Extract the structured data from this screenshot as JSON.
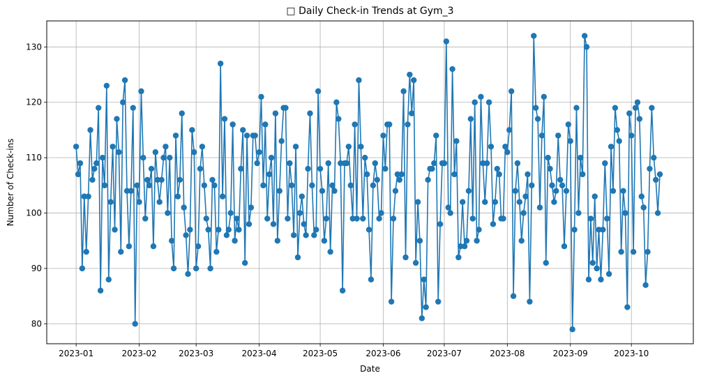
{
  "chart_data": {
    "type": "line",
    "title": "□ Daily Check-in Trends at Gym_3",
    "xlabel": "Date",
    "ylabel": "Number of Check-ins",
    "grid": true,
    "marker": "circle",
    "line_color": "#1f77b4",
    "x_start": "2023-01-01",
    "x_end": "2023-10-17",
    "x_ticks": [
      "2023-01",
      "2023-02",
      "2023-03",
      "2023-04",
      "2023-05",
      "2023-06",
      "2023-07",
      "2023-08",
      "2023-09",
      "2023-10"
    ],
    "y_ticks": [
      80,
      90,
      100,
      110,
      120,
      130
    ],
    "ylim": [
      76.4,
      134.7
    ],
    "series": [
      {
        "values": [
          112,
          107,
          109,
          90,
          103,
          93,
          103,
          115,
          106,
          108,
          109,
          119,
          86,
          110,
          105,
          123,
          88,
          102,
          112,
          97,
          117,
          111,
          93,
          120,
          124,
          104,
          94,
          104,
          119,
          80,
          105,
          102,
          122,
          110,
          99,
          106,
          105,
          108,
          94,
          111,
          106,
          102,
          106,
          110,
          112,
          100,
          110,
          95,
          90,
          114,
          103,
          106,
          118,
          101,
          96,
          89,
          97,
          115,
          111,
          90,
          94,
          108,
          112,
          105,
          99,
          97,
          90,
          106,
          105,
          93,
          97,
          127,
          103,
          117,
          96,
          97,
          100,
          116,
          95,
          99,
          97,
          108,
          115,
          91,
          114,
          98,
          101,
          114,
          114,
          109,
          111,
          121,
          105,
          116,
          99,
          107,
          110,
          98,
          118,
          95,
          104,
          113,
          119,
          119,
          99,
          109,
          105,
          96,
          112,
          92,
          100,
          103,
          98,
          96,
          108,
          118,
          105,
          96,
          97,
          122,
          108,
          104,
          95,
          99,
          109,
          93,
          105,
          104,
          120,
          117,
          109,
          86,
          109,
          109,
          112,
          105,
          99,
          116,
          99,
          124,
          112,
          99,
          110,
          107,
          97,
          88,
          105,
          109,
          106,
          99,
          100,
          114,
          108,
          116,
          116,
          84,
          99,
          104,
          107,
          106,
          107,
          122,
          92,
          116,
          125,
          118,
          124,
          91,
          102,
          95,
          81,
          88,
          83,
          106,
          108,
          108,
          109,
          114,
          84,
          98,
          109,
          109,
          131,
          101,
          100,
          126,
          107,
          113,
          92,
          94,
          102,
          94,
          95,
          104,
          117,
          99,
          120,
          95,
          97,
          121,
          109,
          102,
          109,
          120,
          112,
          98,
          102,
          108,
          107,
          99,
          99,
          112,
          111,
          115,
          122,
          85,
          104,
          109,
          102,
          95,
          100,
          103,
          107,
          84,
          105,
          132,
          119,
          117,
          101,
          114,
          121,
          91,
          110,
          108,
          105,
          102,
          104,
          114,
          106,
          105,
          94,
          104,
          116,
          113,
          79,
          97,
          119,
          100,
          110,
          107,
          132,
          130,
          88,
          99,
          91,
          103,
          90,
          97,
          88,
          97,
          109,
          99,
          89,
          112,
          104,
          119,
          115,
          113,
          93,
          104,
          100,
          83,
          118,
          114,
          93,
          119,
          120,
          117,
          103,
          101,
          87,
          93,
          108,
          119,
          110,
          106,
          100,
          107
        ]
      }
    ]
  }
}
